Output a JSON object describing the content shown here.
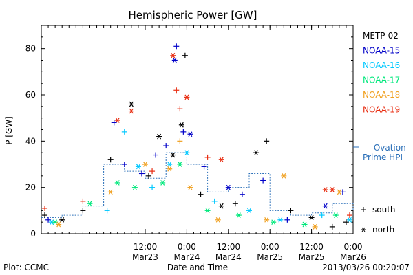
{
  "chart_data": {
    "type": "scatter",
    "title": "Hemispheric Power [GW]",
    "ylabel": "P [GW]",
    "xlabel": "Date and Time",
    "xlim": [
      "2013-03-22T06:00",
      "2013-03-26T00:00"
    ],
    "ylim": [
      0,
      90
    ],
    "yticks": [
      0,
      20,
      40,
      60,
      80
    ],
    "xticks": [
      {
        "t": "2013-03-23T12:00",
        "line1": "12:00",
        "line2": "Mar23"
      },
      {
        "t": "2013-03-24T00:00",
        "line1": "0:00",
        "line2": "Mar24"
      },
      {
        "t": "2013-03-24T12:00",
        "line1": "12:00",
        "line2": "Mar24"
      },
      {
        "t": "2013-03-25T00:00",
        "line1": "0:00",
        "line2": "Mar25"
      },
      {
        "t": "2013-03-25T12:00",
        "line1": "12:00",
        "line2": "Mar25"
      },
      {
        "t": "2013-03-26T00:00",
        "line1": "0:00",
        "line2": "Mar26"
      }
    ],
    "grid": false,
    "legend_position": "right",
    "series": [
      {
        "name": "METP-02",
        "color": "#000000",
        "points": [
          [
            "2013-03-22T07:00",
            8,
            "s"
          ],
          [
            "2013-03-22T12:00",
            6,
            "n"
          ],
          [
            "2013-03-22T18:00",
            10,
            "s"
          ],
          [
            "2013-03-23T02:00",
            32,
            "s"
          ],
          [
            "2013-03-23T08:00",
            56,
            "n"
          ],
          [
            "2013-03-23T13:00",
            25,
            "s"
          ],
          [
            "2013-03-23T16:00",
            42,
            "n"
          ],
          [
            "2013-03-23T20:00",
            34,
            "n"
          ],
          [
            "2013-03-23T22:30",
            47,
            "n"
          ],
          [
            "2013-03-23T23:30",
            77,
            "s"
          ],
          [
            "2013-03-24T04:00",
            17,
            "s"
          ],
          [
            "2013-03-24T10:00",
            12,
            "n"
          ],
          [
            "2013-03-24T14:00",
            13,
            "s"
          ],
          [
            "2013-03-24T20:00",
            35,
            "n"
          ],
          [
            "2013-03-24T23:00",
            40,
            "s"
          ],
          [
            "2013-03-25T06:00",
            10,
            "s"
          ],
          [
            "2013-03-25T12:00",
            7,
            "n"
          ],
          [
            "2013-03-25T18:00",
            3,
            "s"
          ],
          [
            "2013-03-25T22:00",
            5,
            "s"
          ]
        ]
      },
      {
        "name": "NOAA-15",
        "color": "#0000c8",
        "points": [
          [
            "2013-03-22T08:00",
            6,
            "s"
          ],
          [
            "2013-03-23T03:00",
            48,
            "s"
          ],
          [
            "2013-03-23T06:00",
            30,
            "s"
          ],
          [
            "2013-03-23T11:00",
            26,
            "s"
          ],
          [
            "2013-03-23T15:00",
            34,
            "s"
          ],
          [
            "2013-03-23T18:00",
            38,
            "s"
          ],
          [
            "2013-03-23T20:30",
            75,
            "n"
          ],
          [
            "2013-03-23T21:00",
            81,
            "s"
          ],
          [
            "2013-03-23T23:00",
            44,
            "s"
          ],
          [
            "2013-03-24T01:00",
            43,
            "n"
          ],
          [
            "2013-03-24T05:00",
            29,
            "s"
          ],
          [
            "2013-03-24T12:00",
            20,
            "n"
          ],
          [
            "2013-03-24T16:00",
            17,
            "s"
          ],
          [
            "2013-03-24T22:00",
            23,
            "s"
          ],
          [
            "2013-03-25T05:00",
            6,
            "s"
          ],
          [
            "2013-03-25T16:00",
            12,
            "n"
          ],
          [
            "2013-03-25T21:00",
            18,
            "s"
          ]
        ]
      },
      {
        "name": "NOAA-16",
        "color": "#00c8ff",
        "points": [
          [
            "2013-03-22T09:00",
            5,
            "n"
          ],
          [
            "2013-03-23T01:00",
            10,
            "s"
          ],
          [
            "2013-03-23T06:00",
            44,
            "s"
          ],
          [
            "2013-03-23T10:00",
            29,
            "n"
          ],
          [
            "2013-03-23T14:00",
            20,
            "s"
          ],
          [
            "2013-03-23T19:00",
            30,
            "n"
          ],
          [
            "2013-03-24T00:00",
            35,
            "n"
          ],
          [
            "2013-03-24T08:00",
            14,
            "s"
          ],
          [
            "2013-03-24T18:00",
            10,
            "n"
          ],
          [
            "2013-03-25T03:00",
            6,
            "n"
          ],
          [
            "2013-03-25T15:00",
            8,
            "s"
          ],
          [
            "2013-03-25T23:00",
            6,
            "n"
          ]
        ]
      },
      {
        "name": "NOAA-17",
        "color": "#00e87c",
        "points": [
          [
            "2013-03-22T10:00",
            5,
            "n"
          ],
          [
            "2013-03-22T20:00",
            13,
            "n"
          ],
          [
            "2013-03-23T04:00",
            22,
            "n"
          ],
          [
            "2013-03-23T09:00",
            20,
            "n"
          ],
          [
            "2013-03-23T17:00",
            22,
            "n"
          ],
          [
            "2013-03-23T22:00",
            30,
            "n"
          ],
          [
            "2013-03-24T06:00",
            10,
            "n"
          ],
          [
            "2013-03-24T15:00",
            8,
            "n"
          ],
          [
            "2013-03-25T01:00",
            5,
            "n"
          ],
          [
            "2013-03-25T10:00",
            4,
            "n"
          ],
          [
            "2013-03-25T19:00",
            8,
            "n"
          ]
        ]
      },
      {
        "name": "NOAA-18",
        "color": "#f0a020",
        "points": [
          [
            "2013-03-22T11:00",
            4,
            "n"
          ],
          [
            "2013-03-23T02:00",
            18,
            "n"
          ],
          [
            "2013-03-23T12:00",
            30,
            "n"
          ],
          [
            "2013-03-23T19:00",
            28,
            "n"
          ],
          [
            "2013-03-23T22:00",
            40,
            "s"
          ],
          [
            "2013-03-24T01:00",
            20,
            "n"
          ],
          [
            "2013-03-24T09:00",
            6,
            "n"
          ],
          [
            "2013-03-24T23:00",
            6,
            "n"
          ],
          [
            "2013-03-25T04:00",
            25,
            "n"
          ],
          [
            "2013-03-25T13:00",
            3,
            "n"
          ],
          [
            "2013-03-25T20:00",
            18,
            "n"
          ]
        ]
      },
      {
        "name": "NOAA-19",
        "color": "#e82c10",
        "points": [
          [
            "2013-03-22T07:00",
            11,
            "s"
          ],
          [
            "2013-03-22T18:00",
            14,
            "s"
          ],
          [
            "2013-03-23T04:00",
            49,
            "n"
          ],
          [
            "2013-03-23T08:00",
            53,
            "n"
          ],
          [
            "2013-03-23T14:00",
            27,
            "s"
          ],
          [
            "2013-03-23T20:00",
            77,
            "n"
          ],
          [
            "2013-03-23T21:00",
            62,
            "s"
          ],
          [
            "2013-03-23T22:00",
            54,
            "s"
          ],
          [
            "2013-03-24T00:00",
            59,
            "n"
          ],
          [
            "2013-03-24T06:00",
            33,
            "s"
          ],
          [
            "2013-03-24T10:00",
            32,
            "n"
          ],
          [
            "2013-03-25T16:00",
            19,
            "n"
          ],
          [
            "2013-03-25T18:00",
            19,
            "n"
          ],
          [
            "2013-03-25T23:00",
            8,
            "s"
          ]
        ]
      }
    ],
    "ovation": {
      "name_line1": "— Ovation",
      "name_line2": "Prime HPI",
      "color": "#2a6fb8",
      "x": [
        "2013-03-22T06:00",
        "2013-03-22T12:00",
        "2013-03-22T18:00",
        "2013-03-23T00:00",
        "2013-03-23T06:00",
        "2013-03-23T12:00",
        "2013-03-23T18:00",
        "2013-03-24T00:00",
        "2013-03-24T06:00",
        "2013-03-24T12:00",
        "2013-03-24T18:00",
        "2013-03-25T00:00",
        "2013-03-25T06:00",
        "2013-03-25T12:00",
        "2013-03-25T18:00",
        "2013-03-26T00:00"
      ],
      "y": [
        7,
        8,
        12,
        30,
        27,
        24,
        35,
        30,
        18,
        20,
        26,
        10,
        8,
        9,
        13,
        10
      ]
    },
    "marker_legend": [
      {
        "symbol": "+",
        "label": "south"
      },
      {
        "symbol": "*",
        "label": "north"
      }
    ]
  },
  "footer": {
    "left": "Plot: CCMC",
    "right": "2013/03/26 00:20:07"
  }
}
